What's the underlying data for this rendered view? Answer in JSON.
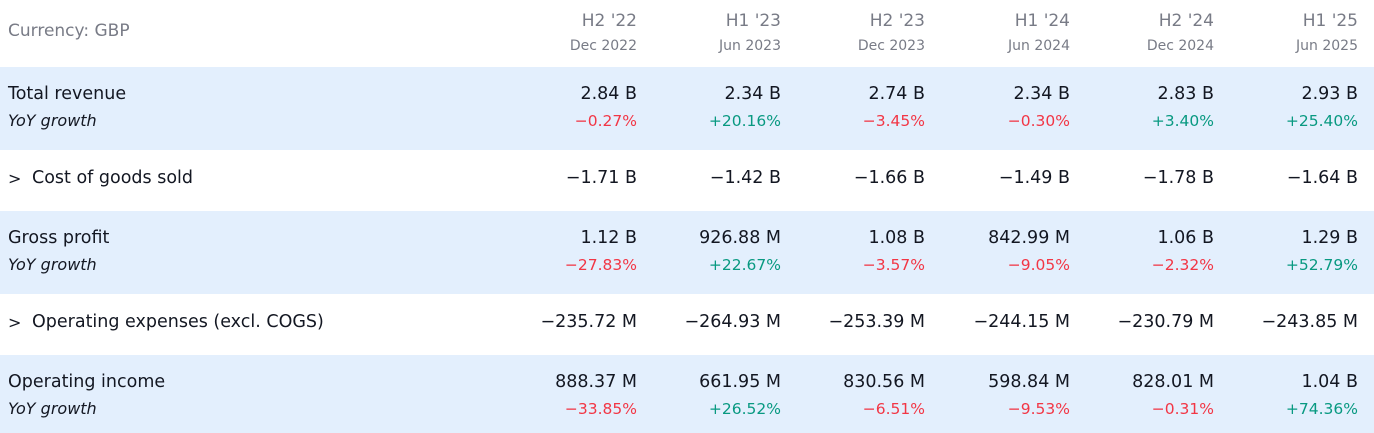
{
  "header": {
    "currency_label": "Currency: GBP",
    "columns": [
      {
        "period": "H2 '22",
        "date": "Dec 2022"
      },
      {
        "period": "H1 '23",
        "date": "Jun 2023"
      },
      {
        "period": "H2 '23",
        "date": "Dec 2023"
      },
      {
        "period": "H1 '24",
        "date": "Jun 2024"
      },
      {
        "period": "H2 '24",
        "date": "Dec 2024"
      },
      {
        "period": "H1 '25",
        "date": "Jun 2025"
      }
    ]
  },
  "rows": [
    {
      "label": "Total revenue",
      "sublabel": "YoY growth",
      "values": [
        "2.84 B",
        "2.34 B",
        "2.74 B",
        "2.34 B",
        "2.83 B",
        "2.93 B"
      ],
      "growth": [
        "−0.27%",
        "+20.16%",
        "−3.45%",
        "−0.30%",
        "+3.40%",
        "+25.40%"
      ]
    },
    {
      "label": "Cost of goods sold",
      "expand_icon": ">",
      "values": [
        "−1.71 B",
        "−1.42 B",
        "−1.66 B",
        "−1.49 B",
        "−1.78 B",
        "−1.64 B"
      ]
    },
    {
      "label": "Gross profit",
      "sublabel": "YoY growth",
      "values": [
        "1.12 B",
        "926.88 M",
        "1.08 B",
        "842.99 M",
        "1.06 B",
        "1.29 B"
      ],
      "growth": [
        "−27.83%",
        "+22.67%",
        "−3.57%",
        "−9.05%",
        "−2.32%",
        "+52.79%"
      ]
    },
    {
      "label": "Operating expenses (excl. COGS)",
      "expand_icon": ">",
      "values": [
        "−235.72 M",
        "−264.93 M",
        "−253.39 M",
        "−244.15 M",
        "−230.79 M",
        "−243.85 M"
      ]
    },
    {
      "label": "Operating income",
      "sublabel": "YoY growth",
      "values": [
        "888.37 M",
        "661.95 M",
        "830.56 M",
        "598.84 M",
        "828.01 M",
        "1.04 B"
      ],
      "growth": [
        "−33.85%",
        "+26.52%",
        "−6.51%",
        "−9.53%",
        "−0.31%",
        "+74.36%"
      ]
    }
  ],
  "colors": {
    "negative": "#f23645",
    "positive": "#089981",
    "row_highlight": "#e3effd",
    "header_text": "#787b86"
  }
}
